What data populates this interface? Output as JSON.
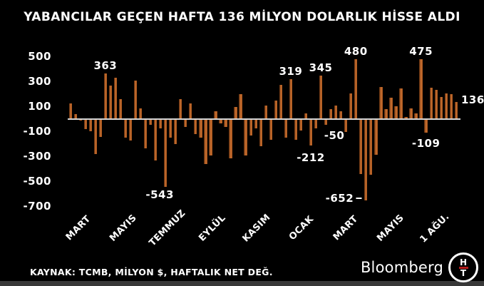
{
  "title": "YABANCILAR GEÇEN HAFTA 136 MİLYON DOLARLIK HİSSE ALDI",
  "source_note": "KAYNAK: TCMB, MİLYON $, HAFTALIK NET DEĞ.",
  "branding": {
    "bloomberg": "Bloomberg",
    "ht_top": "H",
    "ht_bottom": "T"
  },
  "colors": {
    "background": "#000000",
    "bar_main": "#cf7231",
    "bar_edge_dark": "#5c2d0e",
    "axis_line": "#d4d4d4",
    "text": "#ffffff",
    "logo_red": "#b31b1b",
    "footer_strip": "#383838"
  },
  "chart_data": {
    "type": "bar",
    "title": "YABANCILAR GEÇEN HAFTA 136 MİLYON DOLARLIK HİSSE ALDI",
    "source": "TCMB",
    "unit": "MİLYON $",
    "frequency": "HAFTALIK NET DEĞ.",
    "ylim": [
      -700,
      550
    ],
    "grid": false,
    "y_ticks": [
      500,
      300,
      100,
      -100,
      -300,
      -500,
      -700
    ],
    "x_tick_labels": [
      "MART",
      "MAYIS",
      "TEMMUZ",
      "EYLÜL",
      "KASIM",
      "OCAK",
      "MART",
      "MAYIS",
      "1 AĞU."
    ],
    "values": [
      125,
      40,
      -15,
      -85,
      -100,
      -285,
      -145,
      363,
      265,
      330,
      160,
      -150,
      -175,
      305,
      85,
      -235,
      -50,
      -335,
      -75,
      -543,
      -150,
      -200,
      155,
      -65,
      125,
      -125,
      -150,
      -360,
      -295,
      60,
      -35,
      -65,
      -315,
      95,
      200,
      -295,
      -135,
      -75,
      -220,
      105,
      -170,
      145,
      270,
      -150,
      319,
      -170,
      -95,
      45,
      -212,
      -75,
      345,
      -50,
      75,
      105,
      60,
      -105,
      205,
      480,
      -440,
      -652,
      -450,
      -290,
      255,
      80,
      170,
      100,
      245,
      15,
      85,
      45,
      475,
      -109,
      250,
      230,
      175,
      205,
      195,
      136
    ],
    "annotations": [
      {
        "index": 7,
        "text": "363",
        "side": "above"
      },
      {
        "index": 19,
        "text": "-543",
        "side": "below"
      },
      {
        "index": 44,
        "text": "319",
        "side": "above"
      },
      {
        "index": 48,
        "text": "-212",
        "side": "below"
      },
      {
        "index": 50,
        "text": "345",
        "side": "above"
      },
      {
        "index": 51,
        "text": "-50",
        "side": "below"
      },
      {
        "index": 57,
        "text": "480",
        "side": "above"
      },
      {
        "index": 59,
        "text": "-652",
        "side": "left"
      },
      {
        "index": 70,
        "text": "475",
        "side": "above"
      },
      {
        "index": 71,
        "text": "-109",
        "side": "below"
      },
      {
        "index": 77,
        "text": "136",
        "side": "right"
      }
    ]
  }
}
